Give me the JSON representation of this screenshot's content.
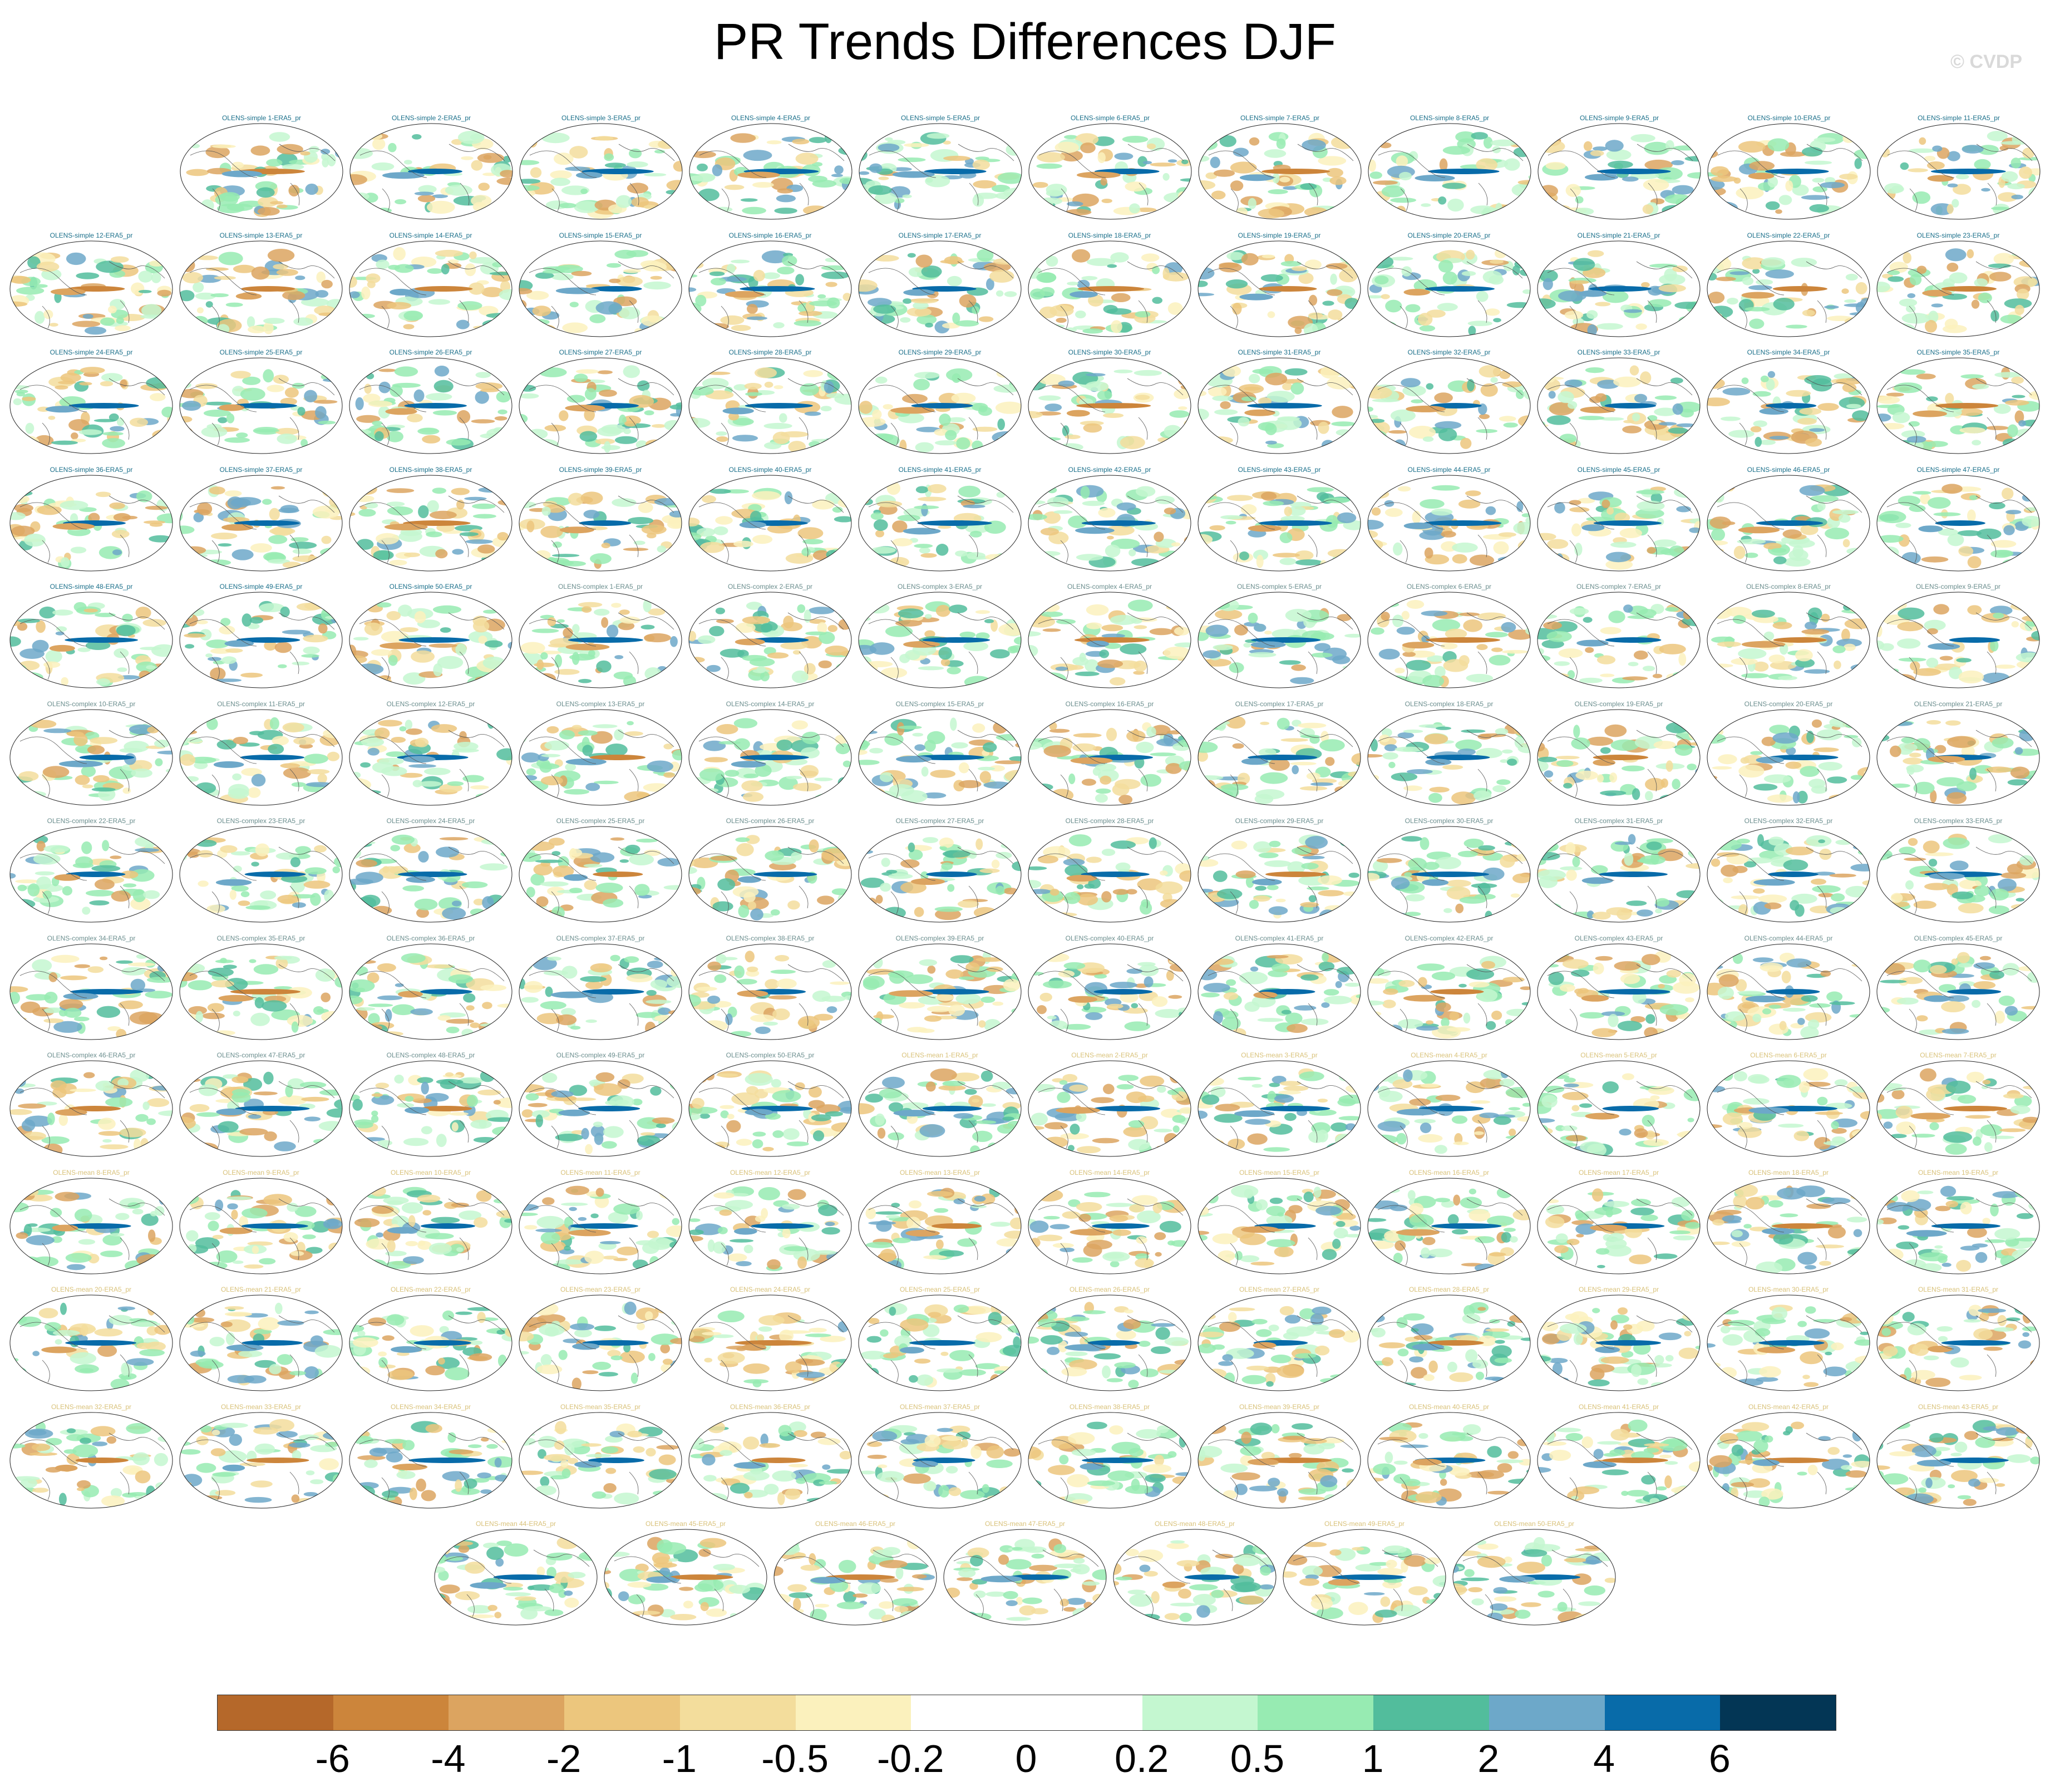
{
  "title": "PR Trends Differences DJF",
  "watermark": "© CVDP",
  "chart_data": {
    "type": "heatmap",
    "title": "PR Trends Differences DJF",
    "projection": "global map panels, one per ensemble member",
    "panels": [
      "OLENS-simple 1-ERA5_pr",
      "OLENS-simple 2-ERA5_pr",
      "OLENS-simple 3-ERA5_pr",
      "OLENS-simple 4-ERA5_pr",
      "OLENS-simple 5-ERA5_pr",
      "OLENS-simple 6-ERA5_pr",
      "OLENS-simple 7-ERA5_pr",
      "OLENS-simple 8-ERA5_pr",
      "OLENS-simple 9-ERA5_pr",
      "OLENS-simple 10-ERA5_pr",
      "OLENS-simple 11-ERA5_pr",
      "OLENS-simple 12-ERA5_pr",
      "OLENS-simple 13-ERA5_pr",
      "OLENS-simple 14-ERA5_pr",
      "OLENS-simple 15-ERA5_pr",
      "OLENS-simple 16-ERA5_pr",
      "OLENS-simple 17-ERA5_pr",
      "OLENS-simple 18-ERA5_pr",
      "OLENS-simple 19-ERA5_pr",
      "OLENS-simple 20-ERA5_pr",
      "OLENS-simple 21-ERA5_pr",
      "OLENS-simple 22-ERA5_pr",
      "OLENS-simple 23-ERA5_pr",
      "OLENS-simple 24-ERA5_pr",
      "OLENS-simple 25-ERA5_pr",
      "OLENS-simple 26-ERA5_pr",
      "OLENS-simple 27-ERA5_pr",
      "OLENS-simple 28-ERA5_pr",
      "OLENS-simple 29-ERA5_pr",
      "OLENS-simple 30-ERA5_pr",
      "OLENS-simple 31-ERA5_pr",
      "OLENS-simple 32-ERA5_pr",
      "OLENS-simple 33-ERA5_pr",
      "OLENS-simple 34-ERA5_pr",
      "OLENS-simple 35-ERA5_pr",
      "OLENS-simple 36-ERA5_pr",
      "OLENS-simple 37-ERA5_pr",
      "OLENS-simple 38-ERA5_pr",
      "OLENS-simple 39-ERA5_pr",
      "OLENS-simple 40-ERA5_pr",
      "OLENS-simple 41-ERA5_pr",
      "OLENS-simple 42-ERA5_pr",
      "OLENS-simple 43-ERA5_pr",
      "OLENS-simple 44-ERA5_pr",
      "OLENS-simple 45-ERA5_pr",
      "OLENS-simple 46-ERA5_pr",
      "OLENS-simple 47-ERA5_pr",
      "OLENS-simple 48-ERA5_pr",
      "OLENS-simple 49-ERA5_pr",
      "OLENS-simple 50-ERA5_pr",
      "OLENS-complex 1-ERA5_pr",
      "OLENS-complex 2-ERA5_pr",
      "OLENS-complex 3-ERA5_pr",
      "OLENS-complex 4-ERA5_pr",
      "OLENS-complex 5-ERA5_pr",
      "OLENS-complex 6-ERA5_pr",
      "OLENS-complex 7-ERA5_pr",
      "OLENS-complex 8-ERA5_pr",
      "OLENS-complex 9-ERA5_pr",
      "OLENS-complex 10-ERA5_pr",
      "OLENS-complex 11-ERA5_pr",
      "OLENS-complex 12-ERA5_pr",
      "OLENS-complex 13-ERA5_pr",
      "OLENS-complex 14-ERA5_pr",
      "OLENS-complex 15-ERA5_pr",
      "OLENS-complex 16-ERA5_pr",
      "OLENS-complex 17-ERA5_pr",
      "OLENS-complex 18-ERA5_pr",
      "OLENS-complex 19-ERA5_pr",
      "OLENS-complex 20-ERA5_pr",
      "OLENS-complex 21-ERA5_pr",
      "OLENS-complex 22-ERA5_pr",
      "OLENS-complex 23-ERA5_pr",
      "OLENS-complex 24-ERA5_pr",
      "OLENS-complex 25-ERA5_pr",
      "OLENS-complex 26-ERA5_pr",
      "OLENS-complex 27-ERA5_pr",
      "OLENS-complex 28-ERA5_pr",
      "OLENS-complex 29-ERA5_pr",
      "OLENS-complex 30-ERA5_pr",
      "OLENS-complex 31-ERA5_pr",
      "OLENS-complex 32-ERA5_pr",
      "OLENS-complex 33-ERA5_pr",
      "OLENS-complex 34-ERA5_pr",
      "OLENS-complex 35-ERA5_pr",
      "OLENS-complex 36-ERA5_pr",
      "OLENS-complex 37-ERA5_pr",
      "OLENS-complex 38-ERA5_pr",
      "OLENS-complex 39-ERA5_pr",
      "OLENS-complex 40-ERA5_pr",
      "OLENS-complex 41-ERA5_pr",
      "OLENS-complex 42-ERA5_pr",
      "OLENS-complex 43-ERA5_pr",
      "OLENS-complex 44-ERA5_pr",
      "OLENS-complex 45-ERA5_pr",
      "OLENS-complex 46-ERA5_pr",
      "OLENS-complex 47-ERA5_pr",
      "OLENS-complex 48-ERA5_pr",
      "OLENS-complex 49-ERA5_pr",
      "OLENS-complex 50-ERA5_pr",
      "OLENS-mean 1-ERA5_pr",
      "OLENS-mean 2-ERA5_pr",
      "OLENS-mean 3-ERA5_pr",
      "OLENS-mean 4-ERA5_pr",
      "OLENS-mean 5-ERA5_pr",
      "OLENS-mean 6-ERA5_pr",
      "OLENS-mean 7-ERA5_pr",
      "OLENS-mean 8-ERA5_pr",
      "OLENS-mean 9-ERA5_pr",
      "OLENS-mean 10-ERA5_pr",
      "OLENS-mean 11-ERA5_pr",
      "OLENS-mean 12-ERA5_pr",
      "OLENS-mean 13-ERA5_pr",
      "OLENS-mean 14-ERA5_pr",
      "OLENS-mean 15-ERA5_pr",
      "OLENS-mean 16-ERA5_pr",
      "OLENS-mean 17-ERA5_pr",
      "OLENS-mean 18-ERA5_pr",
      "OLENS-mean 19-ERA5_pr",
      "OLENS-mean 20-ERA5_pr",
      "OLENS-mean 21-ERA5_pr",
      "OLENS-mean 22-ERA5_pr",
      "OLENS-mean 23-ERA5_pr",
      "OLENS-mean 24-ERA5_pr",
      "OLENS-mean 25-ERA5_pr",
      "OLENS-mean 26-ERA5_pr",
      "OLENS-mean 27-ERA5_pr",
      "OLENS-mean 28-ERA5_pr",
      "OLENS-mean 29-ERA5_pr",
      "OLENS-mean 30-ERA5_pr",
      "OLENS-mean 31-ERA5_pr",
      "OLENS-mean 32-ERA5_pr",
      "OLENS-mean 33-ERA5_pr",
      "OLENS-mean 34-ERA5_pr",
      "OLENS-mean 35-ERA5_pr",
      "OLENS-mean 36-ERA5_pr",
      "OLENS-mean 37-ERA5_pr",
      "OLENS-mean 38-ERA5_pr",
      "OLENS-mean 39-ERA5_pr",
      "OLENS-mean 40-ERA5_pr",
      "OLENS-mean 41-ERA5_pr",
      "OLENS-mean 42-ERA5_pr",
      "OLENS-mean 43-ERA5_pr",
      "OLENS-mean 44-ERA5_pr",
      "OLENS-mean 45-ERA5_pr",
      "OLENS-mean 46-ERA5_pr",
      "OLENS-mean 47-ERA5_pr",
      "OLENS-mean 48-ERA5_pr",
      "OLENS-mean 49-ERA5_pr",
      "OLENS-mean 50-ERA5_pr"
    ],
    "panel_title_colors": {
      "OLENS-simple": "#1a6f8a",
      "OLENS-complex": "#6b8e8e",
      "OLENS-mean": "#d9c27a"
    },
    "colorbar": {
      "levels": [
        -6,
        -4,
        -2,
        -1,
        -0.5,
        -0.2,
        0,
        0.2,
        0.5,
        1,
        2,
        4,
        6
      ],
      "labels": [
        "-6",
        "-4",
        "-2",
        "-1",
        "-0.5",
        "-0.2",
        "0",
        "0.2",
        "0.5",
        "1",
        "2",
        "4",
        "6"
      ],
      "colors": [
        "#b5682a",
        "#cc853b",
        "#dca460",
        "#ecc67d",
        "#f3dd9c",
        "#fbf1bd",
        "#ffffff",
        "#ffffff",
        "#c4f7d0",
        "#97ebb2",
        "#52bd9c",
        "#6da8c9",
        "#086ba9",
        "#033655"
      ]
    }
  }
}
